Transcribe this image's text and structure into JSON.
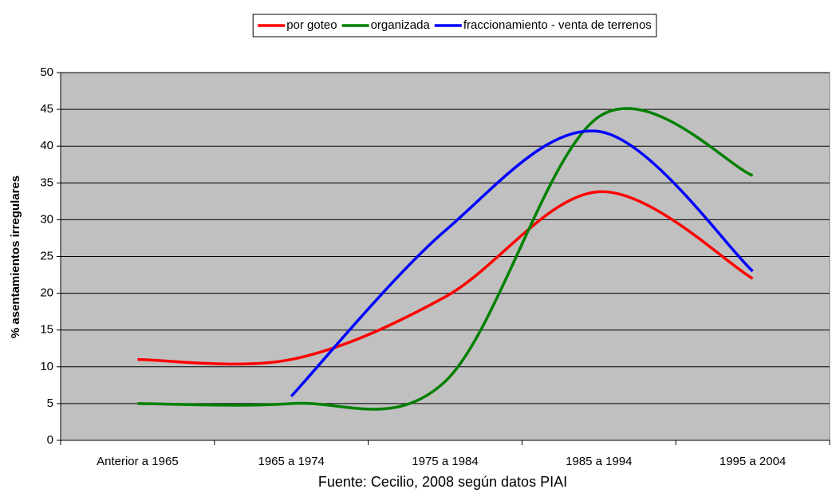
{
  "chart_data": {
    "type": "line",
    "ylabel": "% asentamientos irregulares",
    "caption": "Fuente: Cecilio, 2008 según datos PIAI",
    "categories": [
      "Anterior a 1965",
      "1965 a 1974",
      "1975 a 1984",
      "1985 a 1994",
      "1995 a 2004"
    ],
    "series": [
      {
        "name": "por goteo",
        "color": "#ff0000",
        "values": [
          11,
          11,
          19.5,
          33.8,
          22
        ]
      },
      {
        "name": "organizada",
        "color": "#008000",
        "values": [
          5,
          5,
          8,
          44,
          36
        ]
      },
      {
        "name": "fraccionamiento - venta de terrenos",
        "color": "#0000ff",
        "values": [
          null,
          6,
          28.5,
          42,
          23
        ]
      }
    ],
    "ylim": [
      0,
      50
    ],
    "yticks": [
      0,
      5,
      10,
      15,
      20,
      25,
      30,
      35,
      40,
      45,
      50
    ],
    "grid": true,
    "smooth": true,
    "legend": "top"
  }
}
